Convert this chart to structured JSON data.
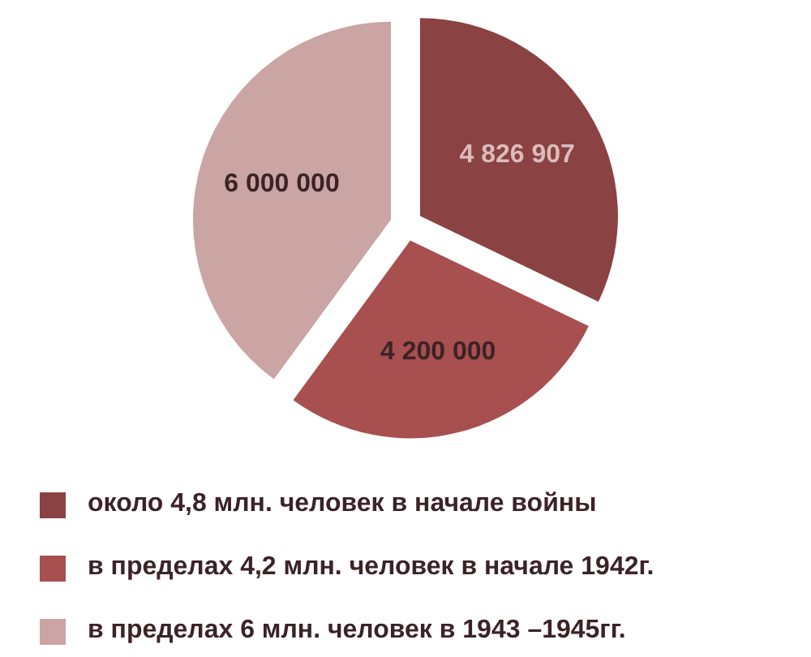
{
  "chart_data": {
    "type": "pie",
    "categories": [
      "около 4,8 млн. человек в начале войны",
      "в пределах 4,2 млн. человек в начале 1942г.",
      "в пределах 6 млн. человек в 1943 –1945гг."
    ],
    "values": [
      4826907,
      4200000,
      6000000
    ],
    "colors": [
      "#8b4242",
      "#a84f4f",
      "#cba4a4"
    ],
    "value_labels": [
      "4 826 907",
      "4 200 000",
      "6 000 000"
    ],
    "legend": "bottom"
  }
}
